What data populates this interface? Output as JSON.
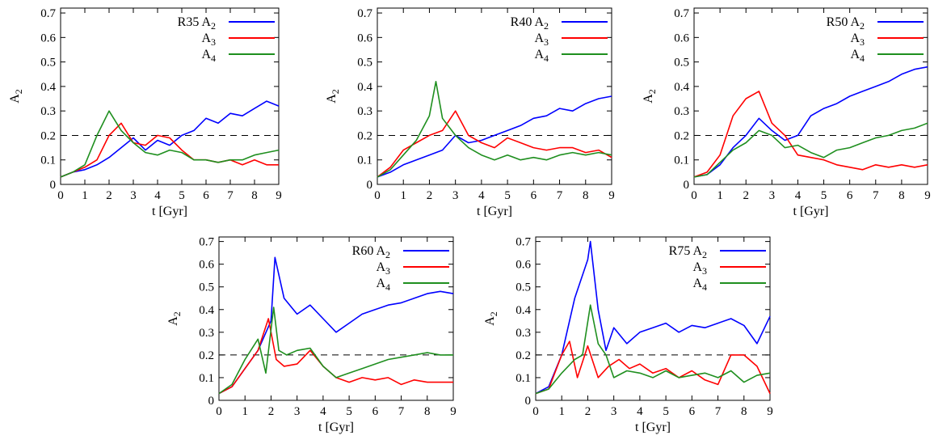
{
  "chart_data": [
    {
      "type": "line",
      "title": "",
      "xlabel": "t [Gyr]",
      "ylabel": "A_2",
      "xlim": [
        0,
        9
      ],
      "ylim": [
        0,
        0.72
      ],
      "xticks": [
        0,
        1,
        2,
        3,
        4,
        5,
        6,
        7,
        8,
        9
      ],
      "yticks": [
        0,
        0.1,
        0.2,
        0.3,
        0.4,
        0.5,
        0.6,
        0.7
      ],
      "reference_line": {
        "y": 0.2,
        "style": "dashed"
      },
      "legend_position": "top-right",
      "legend_prefix": "R35",
      "series": [
        {
          "name": "A_2",
          "color": "#0000ff",
          "x": [
            0,
            0.5,
            1,
            1.5,
            2,
            2.5,
            3,
            3.5,
            4,
            4.5,
            5,
            5.5,
            6,
            6.5,
            7,
            7.5,
            8,
            8.5,
            9
          ],
          "values": [
            0.03,
            0.05,
            0.06,
            0.08,
            0.11,
            0.15,
            0.19,
            0.14,
            0.18,
            0.16,
            0.2,
            0.22,
            0.27,
            0.25,
            0.29,
            0.28,
            0.31,
            0.34,
            0.32
          ]
        },
        {
          "name": "A_3",
          "color": "#ff0000",
          "x": [
            0,
            0.5,
            1,
            1.5,
            2,
            2.5,
            3,
            3.5,
            4,
            4.5,
            5,
            5.5,
            6,
            6.5,
            7,
            7.5,
            8,
            8.5,
            9
          ],
          "values": [
            0.03,
            0.05,
            0.07,
            0.1,
            0.2,
            0.25,
            0.17,
            0.16,
            0.2,
            0.19,
            0.14,
            0.1,
            0.1,
            0.09,
            0.1,
            0.08,
            0.1,
            0.08,
            0.08
          ]
        },
        {
          "name": "A_4",
          "color": "#1f8f1f",
          "x": [
            0,
            0.5,
            1,
            1.5,
            2,
            2.5,
            3,
            3.5,
            4,
            4.5,
            5,
            5.5,
            6,
            6.5,
            7,
            7.5,
            8,
            8.5,
            9
          ],
          "values": [
            0.03,
            0.05,
            0.08,
            0.2,
            0.3,
            0.22,
            0.17,
            0.13,
            0.12,
            0.14,
            0.13,
            0.1,
            0.1,
            0.09,
            0.1,
            0.1,
            0.12,
            0.13,
            0.14
          ]
        }
      ]
    },
    {
      "type": "line",
      "title": "",
      "xlabel": "t [Gyr]",
      "ylabel": "A_2",
      "xlim": [
        0,
        9
      ],
      "ylim": [
        0,
        0.72
      ],
      "xticks": [
        0,
        1,
        2,
        3,
        4,
        5,
        6,
        7,
        8,
        9
      ],
      "yticks": [
        0,
        0.1,
        0.2,
        0.3,
        0.4,
        0.5,
        0.6,
        0.7
      ],
      "reference_line": {
        "y": 0.2,
        "style": "dashed"
      },
      "legend_position": "top-right",
      "legend_prefix": "R40",
      "series": [
        {
          "name": "A_2",
          "color": "#0000ff",
          "x": [
            0,
            0.5,
            1,
            1.5,
            2,
            2.5,
            3,
            3.5,
            4,
            4.5,
            5,
            5.5,
            6,
            6.5,
            7,
            7.5,
            8,
            8.5,
            9
          ],
          "values": [
            0.03,
            0.05,
            0.08,
            0.1,
            0.12,
            0.14,
            0.2,
            0.17,
            0.18,
            0.2,
            0.22,
            0.24,
            0.27,
            0.28,
            0.31,
            0.3,
            0.33,
            0.35,
            0.36
          ]
        },
        {
          "name": "A_3",
          "color": "#ff0000",
          "x": [
            0,
            0.5,
            1,
            1.5,
            2,
            2.5,
            3,
            3.5,
            4,
            4.5,
            5,
            5.5,
            6,
            6.5,
            7,
            7.5,
            8,
            8.5,
            9
          ],
          "values": [
            0.03,
            0.07,
            0.14,
            0.17,
            0.2,
            0.22,
            0.3,
            0.2,
            0.17,
            0.15,
            0.19,
            0.17,
            0.15,
            0.14,
            0.15,
            0.15,
            0.13,
            0.14,
            0.11
          ]
        },
        {
          "name": "A_4",
          "color": "#1f8f1f",
          "x": [
            0,
            0.5,
            1,
            1.5,
            2,
            2.25,
            2.5,
            3,
            3.5,
            4,
            4.5,
            5,
            5.5,
            6,
            6.5,
            7,
            7.5,
            8,
            8.5,
            9
          ],
          "values": [
            0.03,
            0.06,
            0.12,
            0.18,
            0.28,
            0.42,
            0.27,
            0.2,
            0.15,
            0.12,
            0.1,
            0.12,
            0.1,
            0.11,
            0.1,
            0.12,
            0.13,
            0.12,
            0.13,
            0.12
          ]
        }
      ]
    },
    {
      "type": "line",
      "title": "",
      "xlabel": "t [Gyr]",
      "ylabel": "A_2",
      "xlim": [
        0,
        9
      ],
      "ylim": [
        0,
        0.72
      ],
      "xticks": [
        0,
        1,
        2,
        3,
        4,
        5,
        6,
        7,
        8,
        9
      ],
      "yticks": [
        0,
        0.1,
        0.2,
        0.3,
        0.4,
        0.5,
        0.6,
        0.7
      ],
      "reference_line": {
        "y": 0.2,
        "style": "dashed"
      },
      "legend_position": "top-right",
      "legend_prefix": "R50",
      "series": [
        {
          "name": "A_2",
          "color": "#0000ff",
          "x": [
            0,
            0.5,
            1,
            1.5,
            2,
            2.5,
            3,
            3.5,
            4,
            4.5,
            5,
            5.5,
            6,
            6.5,
            7,
            7.5,
            8,
            8.5,
            9
          ],
          "values": [
            0.03,
            0.04,
            0.08,
            0.15,
            0.2,
            0.27,
            0.22,
            0.18,
            0.2,
            0.28,
            0.31,
            0.33,
            0.36,
            0.38,
            0.4,
            0.42,
            0.45,
            0.47,
            0.48
          ]
        },
        {
          "name": "A_3",
          "color": "#ff0000",
          "x": [
            0,
            0.5,
            1,
            1.5,
            2,
            2.5,
            3,
            3.5,
            4,
            4.5,
            5,
            5.5,
            6,
            6.5,
            7,
            7.5,
            8,
            8.5,
            9
          ],
          "values": [
            0.03,
            0.05,
            0.12,
            0.28,
            0.35,
            0.38,
            0.25,
            0.2,
            0.12,
            0.11,
            0.1,
            0.08,
            0.07,
            0.06,
            0.08,
            0.07,
            0.08,
            0.07,
            0.08
          ]
        },
        {
          "name": "A_4",
          "color": "#1f8f1f",
          "x": [
            0,
            0.5,
            1,
            1.5,
            2,
            2.5,
            3,
            3.5,
            4,
            4.5,
            5,
            5.5,
            6,
            6.5,
            7,
            7.5,
            8,
            8.5,
            9
          ],
          "values": [
            0.03,
            0.04,
            0.09,
            0.14,
            0.17,
            0.22,
            0.2,
            0.15,
            0.16,
            0.13,
            0.11,
            0.14,
            0.15,
            0.17,
            0.19,
            0.2,
            0.22,
            0.23,
            0.25
          ]
        }
      ]
    },
    {
      "type": "line",
      "title": "",
      "xlabel": "t [Gyr]",
      "ylabel": "A_2",
      "xlim": [
        0,
        9
      ],
      "ylim": [
        0,
        0.72
      ],
      "xticks": [
        0,
        1,
        2,
        3,
        4,
        5,
        6,
        7,
        8,
        9
      ],
      "yticks": [
        0,
        0.1,
        0.2,
        0.3,
        0.4,
        0.5,
        0.6,
        0.7
      ],
      "reference_line": {
        "y": 0.2,
        "style": "dashed"
      },
      "legend_position": "top-right",
      "legend_prefix": "R60",
      "series": [
        {
          "name": "A_2",
          "color": "#0000ff",
          "x": [
            0,
            0.5,
            1,
            1.5,
            2,
            2.15,
            2.5,
            3,
            3.5,
            4,
            4.5,
            5,
            5.5,
            6,
            6.5,
            7,
            7.5,
            8,
            8.5,
            9
          ],
          "values": [
            0.03,
            0.06,
            0.14,
            0.22,
            0.35,
            0.63,
            0.45,
            0.38,
            0.42,
            0.36,
            0.3,
            0.34,
            0.38,
            0.4,
            0.42,
            0.43,
            0.45,
            0.47,
            0.48,
            0.47
          ]
        },
        {
          "name": "A_3",
          "color": "#ff0000",
          "x": [
            0,
            0.5,
            1,
            1.5,
            1.9,
            2.2,
            2.5,
            3,
            3.5,
            4,
            4.5,
            5,
            5.5,
            6,
            6.5,
            7,
            7.5,
            8,
            8.5,
            9
          ],
          "values": [
            0.03,
            0.06,
            0.14,
            0.22,
            0.36,
            0.18,
            0.15,
            0.16,
            0.22,
            0.15,
            0.1,
            0.08,
            0.1,
            0.09,
            0.1,
            0.07,
            0.09,
            0.08,
            0.08,
            0.08
          ]
        },
        {
          "name": "A_4",
          "color": "#1f8f1f",
          "x": [
            0,
            0.5,
            1,
            1.5,
            1.8,
            2.1,
            2.3,
            2.6,
            3,
            3.5,
            4,
            4.5,
            5,
            5.5,
            6,
            6.5,
            7,
            7.5,
            8,
            8.5,
            9
          ],
          "values": [
            0.03,
            0.07,
            0.18,
            0.27,
            0.12,
            0.41,
            0.22,
            0.2,
            0.22,
            0.23,
            0.15,
            0.1,
            0.12,
            0.14,
            0.16,
            0.18,
            0.19,
            0.2,
            0.21,
            0.2,
            0.2
          ]
        }
      ]
    },
    {
      "type": "line",
      "title": "",
      "xlabel": "t [Gyr]",
      "ylabel": "A_2",
      "xlim": [
        0,
        9
      ],
      "ylim": [
        0,
        0.72
      ],
      "xticks": [
        0,
        1,
        2,
        3,
        4,
        5,
        6,
        7,
        8,
        9
      ],
      "yticks": [
        0,
        0.1,
        0.2,
        0.3,
        0.4,
        0.5,
        0.6,
        0.7
      ],
      "reference_line": {
        "y": 0.2,
        "style": "dashed"
      },
      "legend_position": "top-right",
      "legend_prefix": "R75",
      "series": [
        {
          "name": "A_2",
          "color": "#0000ff",
          "x": [
            0,
            0.5,
            1,
            1.5,
            2,
            2.1,
            2.4,
            2.7,
            3,
            3.5,
            4,
            4.5,
            5,
            5.5,
            6,
            6.5,
            7,
            7.5,
            8,
            8.5,
            9
          ],
          "values": [
            0.03,
            0.06,
            0.2,
            0.45,
            0.62,
            0.7,
            0.4,
            0.22,
            0.32,
            0.25,
            0.3,
            0.32,
            0.34,
            0.3,
            0.33,
            0.32,
            0.34,
            0.36,
            0.33,
            0.25,
            0.37
          ]
        },
        {
          "name": "A_3",
          "color": "#ff0000",
          "x": [
            0,
            0.5,
            1,
            1.3,
            1.6,
            2,
            2.4,
            2.8,
            3.2,
            3.6,
            4,
            4.5,
            5,
            5.5,
            6,
            6.5,
            7,
            7.5,
            8,
            8.5,
            9
          ],
          "values": [
            0.03,
            0.05,
            0.2,
            0.26,
            0.1,
            0.24,
            0.1,
            0.15,
            0.18,
            0.14,
            0.16,
            0.12,
            0.14,
            0.1,
            0.13,
            0.09,
            0.07,
            0.2,
            0.2,
            0.15,
            0.03
          ]
        },
        {
          "name": "A_4",
          "color": "#1f8f1f",
          "x": [
            0,
            0.5,
            1,
            1.5,
            1.8,
            2.1,
            2.4,
            2.7,
            3,
            3.5,
            4,
            4.5,
            5,
            5.5,
            6,
            6.5,
            7,
            7.5,
            8,
            8.5,
            9
          ],
          "values": [
            0.03,
            0.05,
            0.12,
            0.18,
            0.2,
            0.42,
            0.25,
            0.2,
            0.1,
            0.13,
            0.12,
            0.1,
            0.13,
            0.1,
            0.11,
            0.12,
            0.1,
            0.13,
            0.08,
            0.11,
            0.12
          ]
        }
      ]
    }
  ]
}
